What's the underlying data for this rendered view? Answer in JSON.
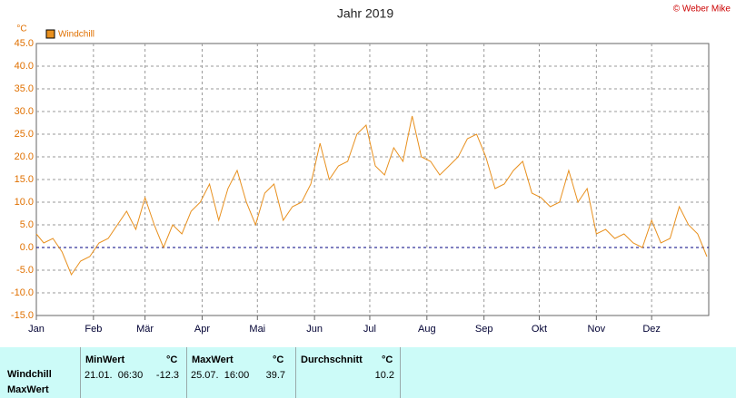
{
  "chart_data": {
    "type": "line",
    "title": "Jahr 2019",
    "credit": "© Weber Mike",
    "y_unit": "°C",
    "xlim": [
      1,
      366
    ],
    "xticks": [
      {
        "value": 1,
        "label": "Jan"
      },
      {
        "value": 32,
        "label": "Feb"
      },
      {
        "value": 60,
        "label": "Mär"
      },
      {
        "value": 91,
        "label": "Apr"
      },
      {
        "value": 121,
        "label": "Mai"
      },
      {
        "value": 152,
        "label": "Jun"
      },
      {
        "value": 182,
        "label": "Jul"
      },
      {
        "value": 213,
        "label": "Aug"
      },
      {
        "value": 244,
        "label": "Sep"
      },
      {
        "value": 274,
        "label": "Okt"
      },
      {
        "value": 305,
        "label": "Nov"
      },
      {
        "value": 335,
        "label": "Dez"
      }
    ],
    "ylim": [
      -15,
      45
    ],
    "yticks": [
      {
        "value": -15,
        "label": "-15.0"
      },
      {
        "value": -10,
        "label": "-10.0"
      },
      {
        "value": -5,
        "label": "-5.0"
      },
      {
        "value": 0,
        "label": "0.0"
      },
      {
        "value": 5,
        "label": "5.0"
      },
      {
        "value": 10,
        "label": "10.0"
      },
      {
        "value": 15,
        "label": "15.0"
      },
      {
        "value": 20,
        "label": "20.0"
      },
      {
        "value": 25,
        "label": "25.0"
      },
      {
        "value": 30,
        "label": "30.0"
      },
      {
        "value": 35,
        "label": "35.0"
      },
      {
        "value": 40,
        "label": "40.0"
      },
      {
        "value": 45,
        "label": "45.0"
      }
    ],
    "grid": true,
    "x": [
      1,
      5,
      10,
      15,
      20,
      25,
      30,
      35,
      40,
      45,
      50,
      55,
      60,
      65,
      70,
      75,
      80,
      85,
      90,
      95,
      100,
      105,
      110,
      115,
      120,
      125,
      130,
      135,
      140,
      145,
      150,
      155,
      160,
      165,
      170,
      175,
      180,
      185,
      190,
      195,
      200,
      205,
      210,
      215,
      220,
      225,
      230,
      235,
      240,
      245,
      250,
      255,
      260,
      265,
      270,
      275,
      280,
      285,
      290,
      295,
      300,
      305,
      310,
      315,
      320,
      325,
      330,
      335,
      340,
      345,
      350,
      355,
      360,
      365
    ],
    "series": [
      {
        "name": "Windchill",
        "color": "#e8901e",
        "values": [
          3,
          1,
          2,
          -1,
          -6,
          -3,
          -2,
          1,
          2,
          5,
          8,
          4,
          11,
          5,
          0,
          5,
          3,
          8,
          10,
          14,
          6,
          13,
          17,
          10,
          5,
          12,
          14,
          6,
          9,
          10,
          14,
          23,
          15,
          18,
          19,
          25,
          27,
          18,
          16,
          22,
          19,
          29,
          20,
          19,
          16,
          18,
          20,
          24,
          25,
          20,
          13,
          14,
          17,
          19,
          12,
          11,
          9,
          10,
          17,
          10,
          13,
          3,
          4,
          2,
          3,
          1,
          0,
          6,
          1,
          2,
          9,
          5,
          3,
          -2
        ]
      }
    ]
  },
  "table": {
    "row_labels": [
      "Windchill",
      "MaxWert"
    ],
    "columns": [
      {
        "title": "MinWert",
        "unit": "°C",
        "time": "21.01.  06:30",
        "value": "-12.3"
      },
      {
        "title": "MaxWert",
        "unit": "°C",
        "time": "25.07.  16:00",
        "value": "39.7"
      },
      {
        "title": "Durchschnitt",
        "unit": "°C",
        "value": "10.2"
      }
    ]
  }
}
